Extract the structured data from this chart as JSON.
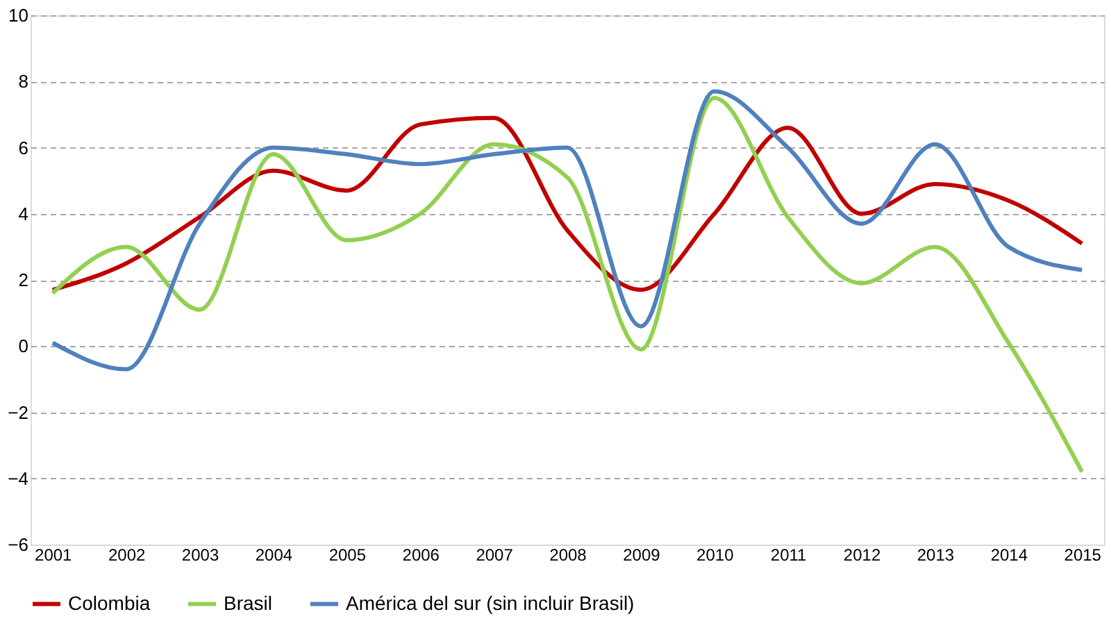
{
  "chart_data": {
    "type": "line",
    "categories": [
      "2001",
      "2002",
      "2003",
      "2004",
      "2005",
      "2006",
      "2007",
      "2008",
      "2009",
      "2010",
      "2011",
      "2012",
      "2013",
      "2014",
      "2015"
    ],
    "series": [
      {
        "name": "Colombia",
        "color": "#c00000",
        "values": [
          1.7,
          2.5,
          3.9,
          5.3,
          4.7,
          6.7,
          6.9,
          3.5,
          1.7,
          4.0,
          6.6,
          4.0,
          4.9,
          4.4,
          3.1
        ]
      },
      {
        "name": "Brasil",
        "color": "#92d050",
        "values": [
          1.6,
          3.0,
          1.1,
          5.8,
          3.2,
          4.0,
          6.1,
          5.1,
          -0.1,
          7.5,
          3.9,
          1.9,
          3.0,
          0.1,
          -3.8
        ]
      },
      {
        "name": "América del sur (sin incluir Brasil)",
        "color": "#4f81bd",
        "values": [
          0.1,
          -0.7,
          3.7,
          6.0,
          5.8,
          5.5,
          5.8,
          6.0,
          0.6,
          7.7,
          6.0,
          3.7,
          6.1,
          3.0,
          2.3
        ]
      }
    ],
    "ylim": [
      -6,
      10
    ],
    "yticks": [
      -6,
      -4,
      -2,
      0,
      2,
      4,
      6,
      8,
      10
    ],
    "grid": "y",
    "legend": "bottom",
    "marker": "none",
    "line_style": "solid"
  }
}
